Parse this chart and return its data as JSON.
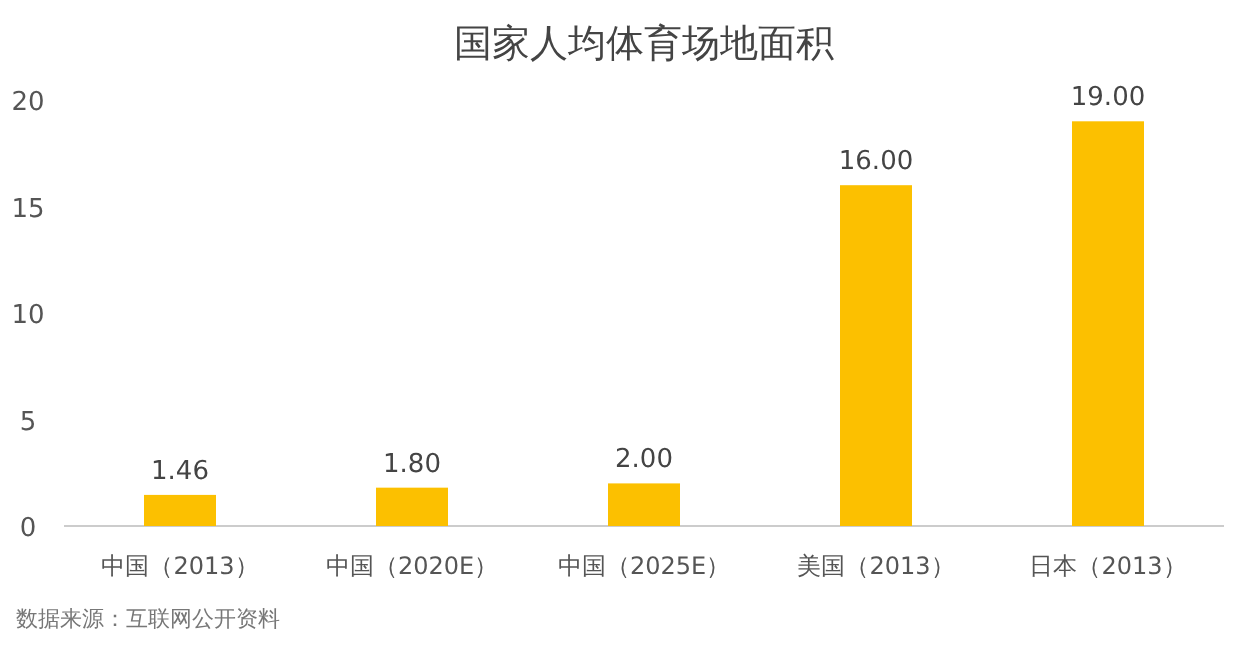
{
  "chart_data": {
    "type": "bar",
    "title": "国家人均体育场地面积",
    "categories": [
      "中国（2013）",
      "中国（2020E）",
      "中国（2025E）",
      "美国（2013）",
      "日本（2013）"
    ],
    "values": [
      1.46,
      1.8,
      2.0,
      16.0,
      19.0
    ],
    "value_labels": [
      "1.46",
      "1.80",
      "2.00",
      "16.00",
      "19.00"
    ],
    "color": "#fcc000",
    "ylim": [
      0,
      20
    ],
    "yticks": [
      0,
      5,
      10,
      15,
      20
    ],
    "annotations": [
      "数据来源：互联网公开资料"
    ]
  }
}
